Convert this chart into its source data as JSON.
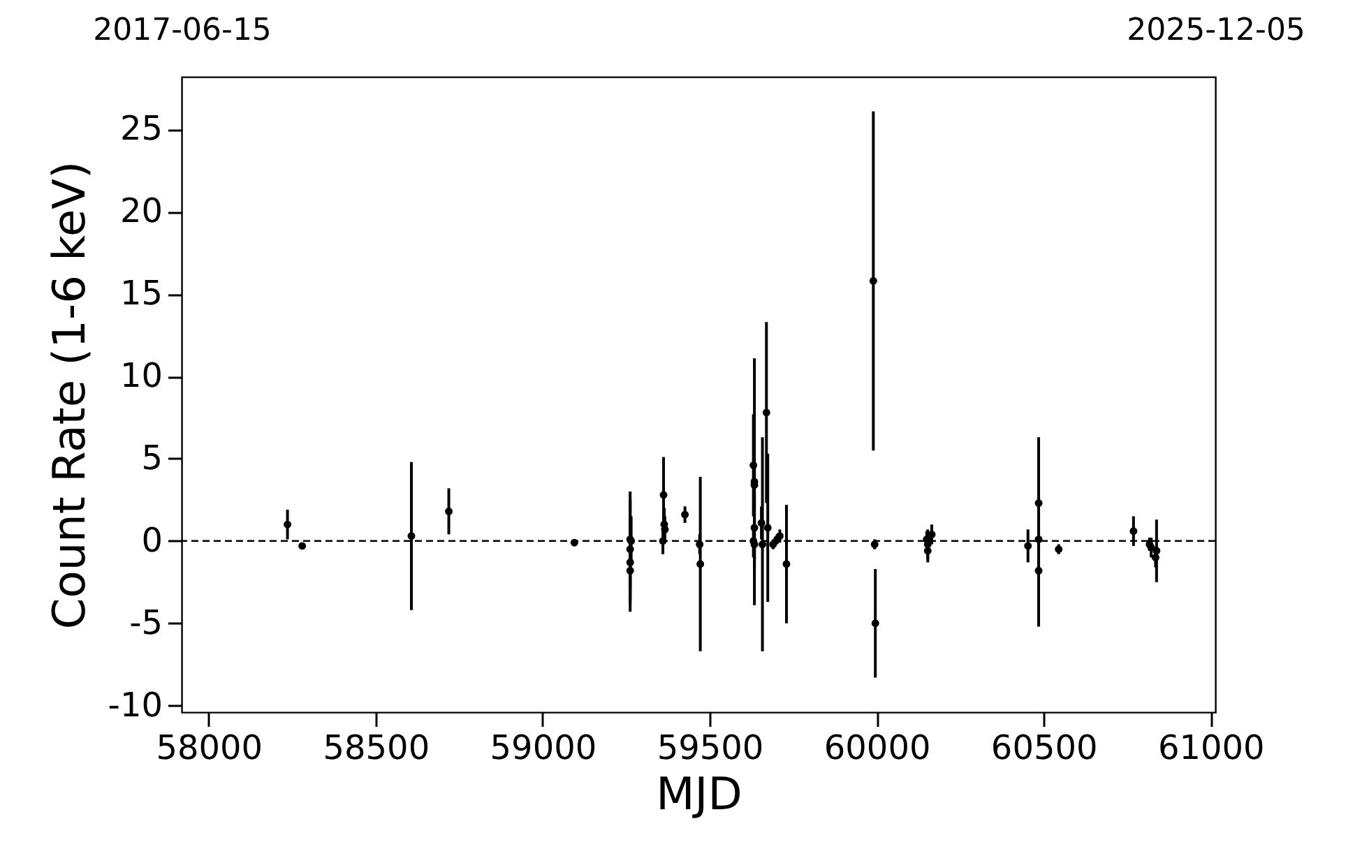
{
  "chart_data": {
    "type": "scatter",
    "xlabel": "MJD",
    "ylabel": "Count Rate (1-6 keV)",
    "xlim": [
      57919,
      61014
    ],
    "xticks": [
      58000,
      58500,
      59000,
      59500,
      60000,
      60500,
      61000
    ],
    "ylim": [
      -10.4,
      28.2
    ],
    "yticks": [
      -10,
      -5,
      0,
      5,
      10,
      15,
      20,
      25
    ],
    "x2lim": [
      "2017-06-15",
      "2025-12-05"
    ],
    "x2ticks": [
      "2017-06-15",
      "2025-12-05"
    ],
    "marker": "circle",
    "grid": false,
    "ref_lines": [
      {
        "axis": "y",
        "value": 0,
        "label": null,
        "color": "#000000",
        "line_style": "dashed"
      }
    ],
    "series": [
      {
        "color": "#000000",
        "x": [
          58236,
          58280,
          58607,
          58719,
          59095,
          59262,
          59262,
          59262,
          59262,
          59265,
          59362,
          59364,
          59366,
          59360,
          59426,
          59470,
          59472,
          59631,
          59634,
          59634,
          59634,
          59631,
          59634,
          59658,
          59655,
          59670,
          59674,
          59690,
          59702,
          59710,
          59730,
          59990,
          59994,
          59996,
          60153,
          60153,
          60150,
          60165,
          60453,
          60485,
          60485,
          60485,
          60545,
          60769,
          60817,
          60822,
          60835,
          60838
        ],
        "values": [
          1.0,
          -0.3,
          0.3,
          1.8,
          -0.1,
          0.1,
          -0.5,
          -1.3,
          -1.8,
          0.0,
          2.8,
          1.0,
          0.7,
          0.0,
          1.6,
          -0.2,
          -1.4,
          4.6,
          3.6,
          3.4,
          0.8,
          0.0,
          -0.2,
          -0.2,
          1.1,
          7.8,
          0.8,
          -0.2,
          0.1,
          0.3,
          -1.4,
          15.8,
          -0.2,
          -5.0,
          -0.2,
          -0.6,
          0.1,
          0.4,
          -0.3,
          2.3,
          0.1,
          -1.8,
          -0.5,
          0.6,
          -0.2,
          -0.4,
          -1.0,
          -0.6
        ],
        "errors": [
          0.9,
          0.2,
          4.5,
          1.4,
          0.2,
          2.9,
          3.0,
          2.5,
          2.5,
          1.5,
          2.3,
          1.0,
          0.8,
          0.8,
          0.5,
          0.6,
          5.3,
          3.1,
          7.5,
          1.5,
          2.0,
          1.0,
          1.5,
          6.5,
          1.0,
          5.5,
          4.5,
          0.3,
          0.3,
          0.4,
          3.6,
          10.3,
          0.3,
          3.3,
          0.9,
          0.7,
          0.5,
          0.6,
          1.0,
          4.0,
          0.3,
          3.4,
          0.3,
          0.9,
          0.4,
          0.6,
          0.6,
          1.9
        ]
      }
    ]
  }
}
